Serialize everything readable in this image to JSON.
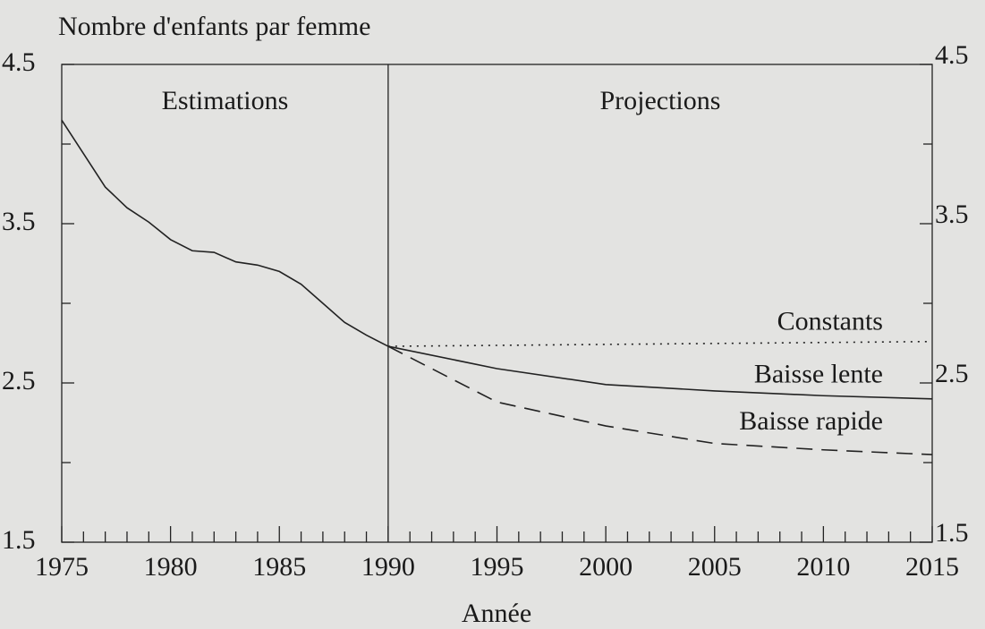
{
  "chart_data": {
    "type": "line",
    "ylabel": "Nombre d'enfants par femme",
    "xlabel": "Année",
    "annotations": [
      {
        "text": "Estimations",
        "x": 1982.5
      },
      {
        "text": "Projections",
        "x": 2002.5
      }
    ],
    "vline": 1990,
    "xlim": [
      1975,
      2015
    ],
    "xticks": [
      1975,
      1980,
      1985,
      1990,
      1995,
      2000,
      2005,
      2010,
      2015
    ],
    "xminor_ticks": [
      1976,
      1977,
      1978,
      1979,
      1981,
      1982,
      1983,
      1984,
      1986,
      1987,
      1988,
      1989,
      1991,
      1992,
      1993,
      1994,
      1996,
      1997,
      1998,
      1999,
      2001,
      2002,
      2003,
      2004,
      2006,
      2007,
      2008,
      2009,
      2011,
      2012,
      2013,
      2014
    ],
    "ylim": [
      1.5,
      4.5
    ],
    "yticks": [
      1.5,
      2.5,
      3.5,
      4.5
    ],
    "yminor_ticks": [
      2,
      3,
      4
    ],
    "y2lim": [
      1.5,
      4.5
    ],
    "y2ticks": [
      1.5,
      2.5,
      3.5,
      4.5
    ],
    "series": [
      {
        "color": "#222222",
        "style": "solid",
        "x": [
          1975,
          1976,
          1977,
          1978,
          1979,
          1980,
          1981,
          1982,
          1983,
          1984,
          1985,
          1986,
          1987,
          1988,
          1989,
          1990
        ],
        "values": [
          4.15,
          3.94,
          3.73,
          3.6,
          3.51,
          3.4,
          3.33,
          3.32,
          3.26,
          3.24,
          3.2,
          3.12,
          3.0,
          2.88,
          2.8,
          2.73
        ]
      },
      {
        "name": "Constants",
        "color": "#222222",
        "style": "dotted",
        "x": [
          1990,
          2015
        ],
        "values": [
          2.73,
          2.76
        ]
      },
      {
        "name": "Baisse lente",
        "color": "#222222",
        "style": "solid",
        "x": [
          1990,
          1995,
          2000,
          2005,
          2010,
          2015
        ],
        "values": [
          2.73,
          2.59,
          2.49,
          2.45,
          2.42,
          2.4
        ]
      },
      {
        "name": "Baisse rapide",
        "color": "#222222",
        "style": "dashed",
        "x": [
          1990,
          1995,
          2000,
          2005,
          2010,
          2015
        ],
        "values": [
          2.73,
          2.38,
          2.23,
          2.12,
          2.08,
          2.05
        ]
      }
    ]
  }
}
